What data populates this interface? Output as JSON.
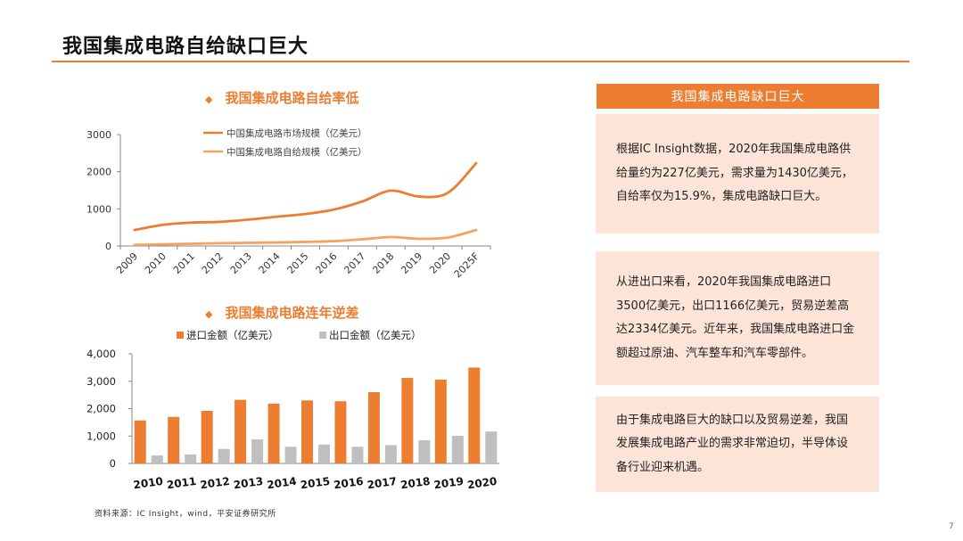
{
  "slide": {
    "title": "我国集成电路自给缺口巨大",
    "source": "资料来源：IC Insight，wind，平安证券研究所",
    "page_number": "7"
  },
  "colors": {
    "accent": "#ed7d31",
    "accent_light": "#f4a460",
    "grey": "#bfbfbf",
    "panel_bg": "#fce4d8"
  },
  "chart_data": [
    {
      "type": "line",
      "title": "我国集成电路自给率低",
      "title_marker": "◆",
      "categories": [
        "2009",
        "2010",
        "2011",
        "2012",
        "2013",
        "2014",
        "2015",
        "2016",
        "2017",
        "2018",
        "2019",
        "2020",
        "2025F"
      ],
      "series": [
        {
          "name": "中国集成电路市场规模（亿美元）",
          "values": [
            430,
            570,
            630,
            650,
            710,
            790,
            860,
            980,
            1200,
            1490,
            1330,
            1430,
            2230
          ]
        },
        {
          "name": "中国集成电路自给规模（亿美元）",
          "values": [
            30,
            45,
            60,
            75,
            85,
            95,
            110,
            130,
            180,
            240,
            195,
            227,
            430
          ]
        }
      ],
      "y_ticks": [
        "0",
        "1000",
        "2000",
        "3000"
      ],
      "ylim": [
        0,
        3000
      ],
      "grid": false,
      "legend_position": "top"
    },
    {
      "type": "bar",
      "title": "我国集成电路连年逆差",
      "title_marker": "◆",
      "categories": [
        "2010",
        "2011",
        "2012",
        "2013",
        "2014",
        "2015",
        "2016",
        "2017",
        "2018",
        "2019",
        "2020"
      ],
      "series": [
        {
          "name": "进口金额（亿美元）",
          "values": [
            1570,
            1700,
            1920,
            2320,
            2180,
            2300,
            2270,
            2600,
            3120,
            3060,
            3500
          ]
        },
        {
          "name": "出口金额（亿美元）",
          "values": [
            290,
            330,
            530,
            880,
            610,
            690,
            610,
            670,
            850,
            1010,
            1166
          ]
        }
      ],
      "y_ticks": [
        "0",
        "1,000",
        "2,000",
        "3,000",
        "4,000"
      ],
      "ylim": [
        0,
        4000
      ],
      "grid": false,
      "legend_position": "top"
    }
  ],
  "panel": {
    "header": "我国集成电路缺口巨大",
    "paragraphs": [
      "根据IC Insight数据，2020年我国集成电路供给量约为227亿美元，需求量为1430亿美元，自给率仅为15.9%，集成电路缺口巨大。",
      "从进出口来看，2020年我国集成电路进口3500亿美元，出口1166亿美元，贸易逆差高达2334亿美元。近年来，我国集成电路进口金额超过原油、汽车整车和汽车零部件。",
      "由于集成电路巨大的缺口以及贸易逆差，我国发展集成电路产业的需求非常迫切，半导体设备行业迎来机遇。"
    ]
  }
}
